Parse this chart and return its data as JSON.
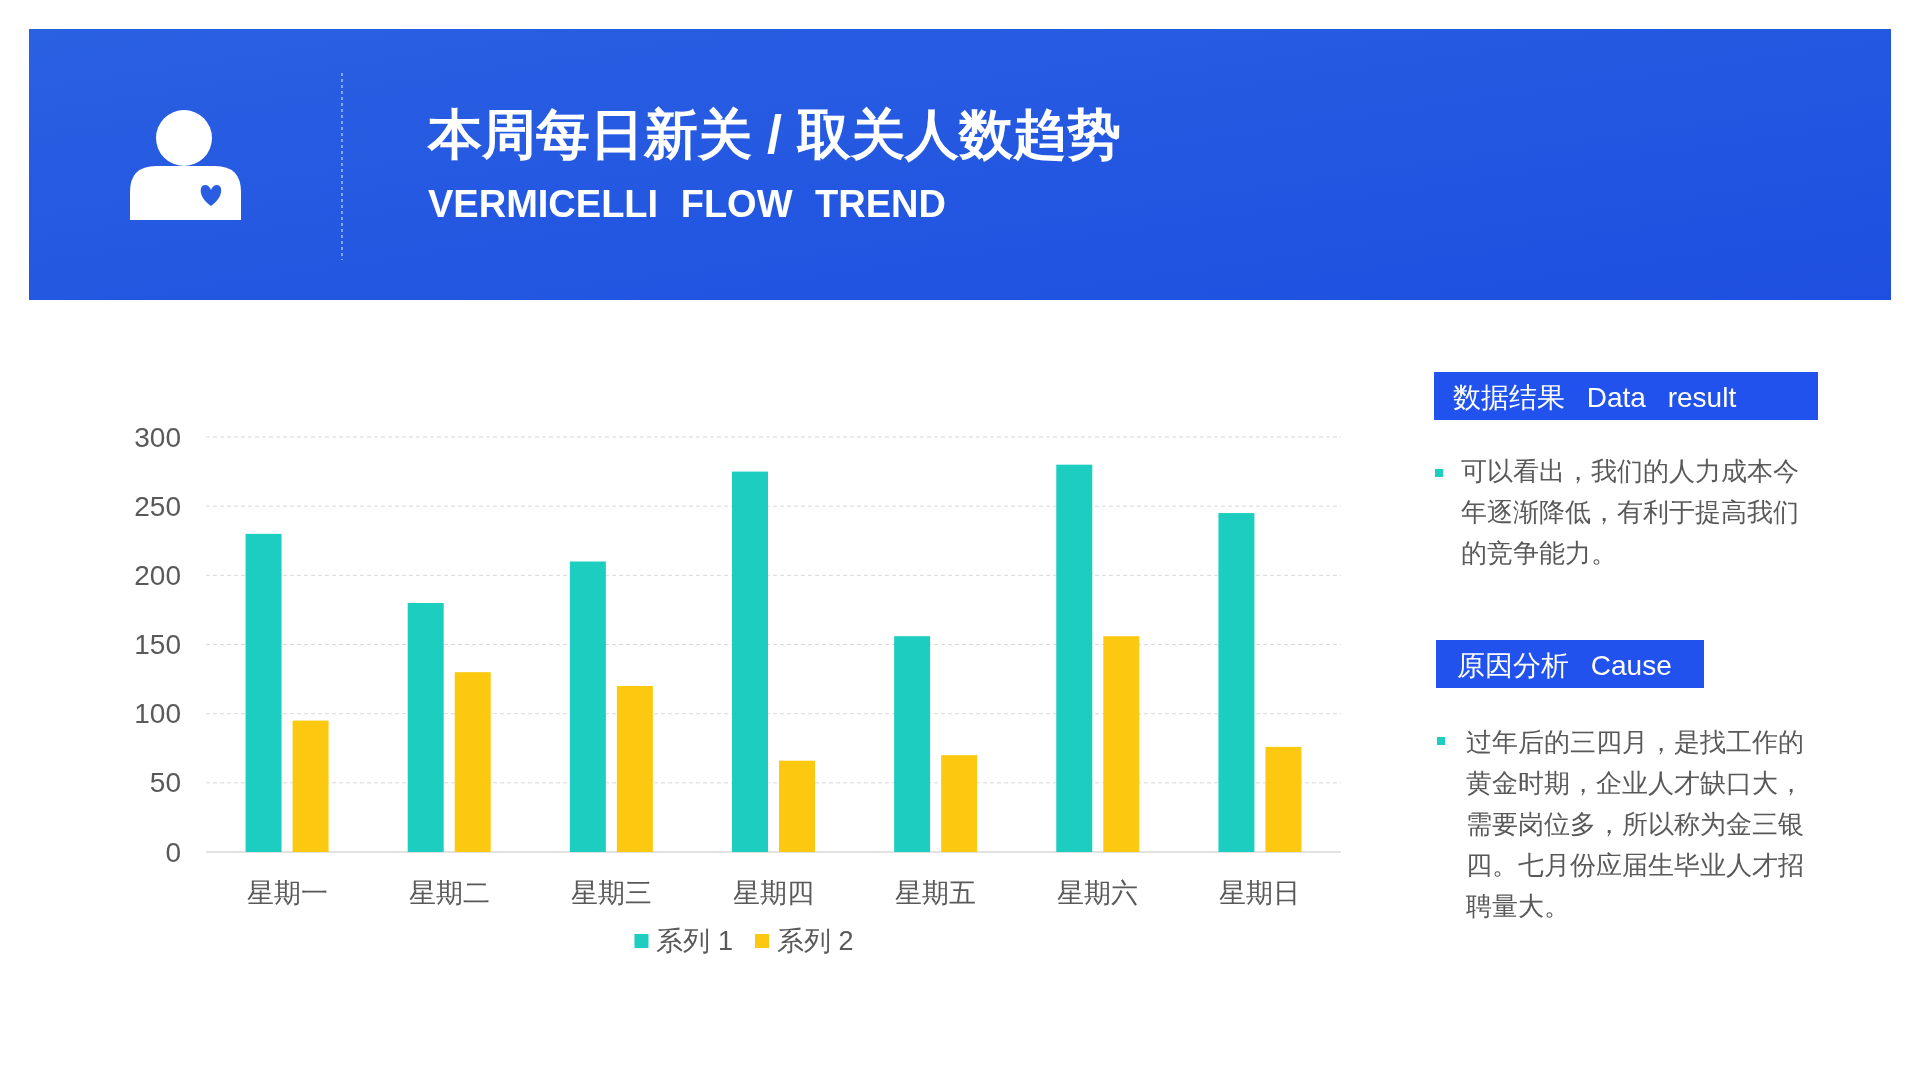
{
  "chart_data": {
    "type": "bar",
    "title": "本周每日新关 / 取关人数趋势",
    "subtitle": "VERMICELLI FLOW TREND",
    "categories": [
      "星期一",
      "星期二",
      "星期三",
      "星期四",
      "星期五",
      "星期六",
      "星期日"
    ],
    "series": [
      {
        "name": "系列 1",
        "color": "#1ccdc0",
        "values": [
          230,
          180,
          210,
          275,
          156,
          280,
          245
        ]
      },
      {
        "name": "系列 2",
        "color": "#fdc910",
        "values": [
          95,
          130,
          120,
          66,
          70,
          156,
          76
        ]
      }
    ],
    "ylim": [
      0,
      300
    ],
    "yticks": [
      0,
      50,
      100,
      150,
      200,
      250,
      300
    ],
    "grid": "y",
    "legend": "bottom",
    "annotations": [
      "数据结果 Data result",
      "可以看出，我们的人力成本今年逐渐降低，有利于提高我们的竞争能力。",
      "原因分析 Cause",
      "过年后的三四月，是找工作的黄金时期，企业人才缺口大，需要岗位多，所以称为金三银四。七月份应届生毕业人才招聘量大。"
    ]
  }
}
